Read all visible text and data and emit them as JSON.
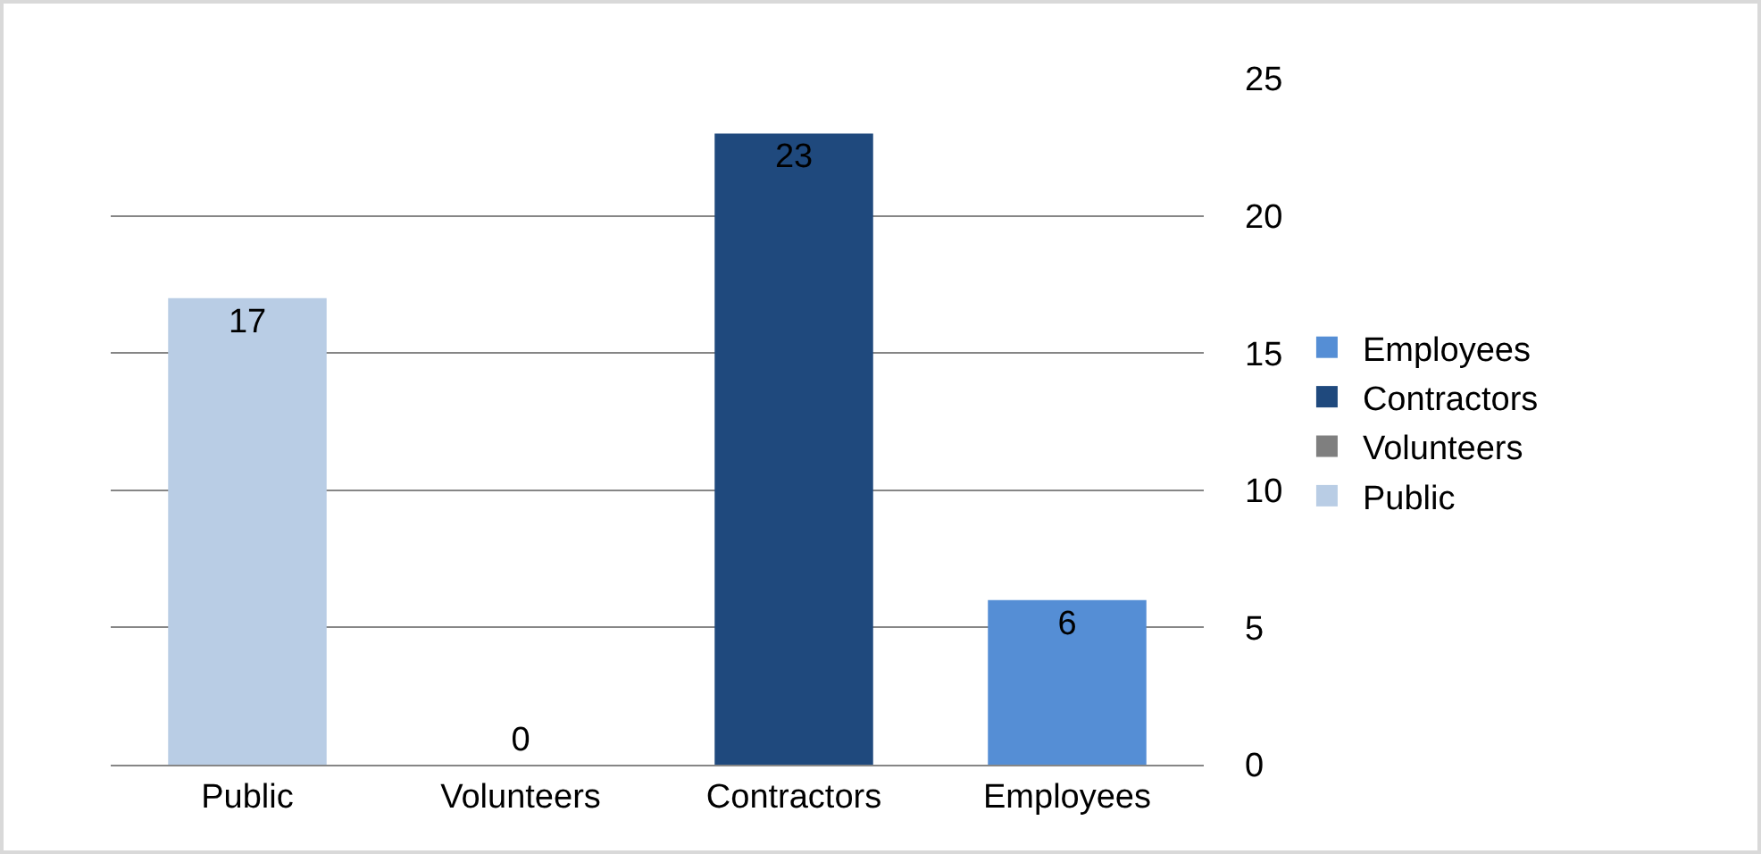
{
  "chart_data": {
    "type": "bar",
    "categories": [
      "Public",
      "Volunteers",
      "Contractors",
      "Employees"
    ],
    "series": [
      {
        "name": "Public",
        "color": "#b9cde5",
        "values": [
          17,
          null,
          null,
          null
        ]
      },
      {
        "name": "Volunteers",
        "color": "#7f7f7f",
        "values": [
          null,
          0,
          null,
          null
        ]
      },
      {
        "name": "Contractors",
        "color": "#1f497d",
        "values": [
          null,
          null,
          23,
          null
        ]
      },
      {
        "name": "Employees",
        "color": "#558ed5",
        "values": [
          null,
          null,
          null,
          6
        ]
      }
    ],
    "ylim": [
      0,
      25
    ],
    "yticks": [
      0,
      5,
      10,
      15,
      20,
      25
    ],
    "grid": "y",
    "legend": "right",
    "data_labels": true
  }
}
